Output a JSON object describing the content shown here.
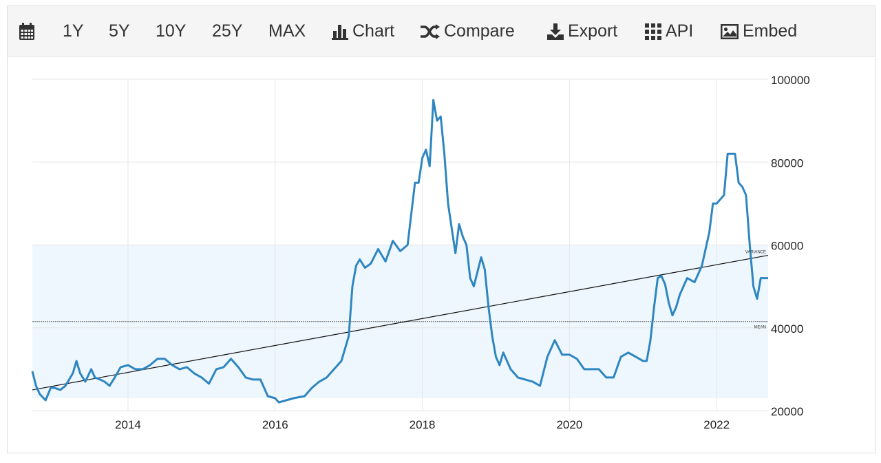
{
  "toolbar": {
    "items": [
      {
        "label": "",
        "icon": "calendar-icon"
      },
      {
        "label": "1Y",
        "icon": ""
      },
      {
        "label": "5Y",
        "icon": ""
      },
      {
        "label": "10Y",
        "icon": ""
      },
      {
        "label": "25Y",
        "icon": ""
      },
      {
        "label": "MAX",
        "icon": ""
      },
      {
        "label": "Chart",
        "icon": "bar-chart-icon"
      },
      {
        "label": "Compare",
        "icon": "shuffle-icon"
      },
      {
        "label": "Export",
        "icon": "download-icon"
      },
      {
        "label": "API",
        "icon": "grid-icon"
      },
      {
        "label": "Embed",
        "icon": "image-icon"
      }
    ]
  },
  "chart_data": {
    "type": "line",
    "title": "",
    "xlabel": "",
    "ylabel": "",
    "xlim": [
      2012.7,
      2022.7
    ],
    "ylim": [
      20000,
      100000
    ],
    "x_ticks": [
      2014,
      2016,
      2018,
      2020,
      2022
    ],
    "x_tick_labels": [
      "2014",
      "2016",
      "2018",
      "2020",
      "2022"
    ],
    "y_ticks": [
      20000,
      40000,
      60000,
      80000,
      100000
    ],
    "y_tick_labels": [
      "20000",
      "40000",
      "60000",
      "80000",
      "100000"
    ],
    "grid": true,
    "colors": {
      "series": "#2e86c1",
      "band": "#eef7fd",
      "trend": "#111111",
      "mean": "#666666",
      "grid": "#e6e6e6"
    },
    "mean": 41500,
    "mean_label": "MEAN",
    "variance_band": [
      23000,
      60000
    ],
    "variance_label": "VARIANCE",
    "trend_line": {
      "x": [
        2012.7,
        2022.7
      ],
      "y": [
        25000,
        57500
      ]
    },
    "series": [
      {
        "x": [
          2012.7,
          2012.75,
          2012.8,
          2012.88,
          2012.95,
          2013.0,
          2013.08,
          2013.15,
          2013.25,
          2013.3,
          2013.35,
          2013.42,
          2013.5,
          2013.55,
          2013.62,
          2013.68,
          2013.75,
          2013.82,
          2013.9,
          2014.0,
          2014.1,
          2014.2,
          2014.3,
          2014.4,
          2014.5,
          2014.6,
          2014.7,
          2014.8,
          2014.9,
          2015.0,
          2015.1,
          2015.2,
          2015.3,
          2015.4,
          2015.5,
          2015.6,
          2015.7,
          2015.8,
          2015.9,
          2016.0,
          2016.05,
          2016.15,
          2016.25,
          2016.4,
          2016.5,
          2016.6,
          2016.7,
          2016.8,
          2016.9,
          2017.0,
          2017.05,
          2017.1,
          2017.15,
          2017.22,
          2017.3,
          2017.4,
          2017.5,
          2017.6,
          2017.7,
          2017.8,
          2017.9,
          2017.95,
          2018.0,
          2018.05,
          2018.1,
          2018.15,
          2018.2,
          2018.25,
          2018.3,
          2018.35,
          2018.4,
          2018.45,
          2018.5,
          2018.55,
          2018.6,
          2018.65,
          2018.7,
          2018.8,
          2018.85,
          2018.9,
          2018.95,
          2019.0,
          2019.05,
          2019.1,
          2019.2,
          2019.3,
          2019.4,
          2019.5,
          2019.6,
          2019.7,
          2019.8,
          2019.9,
          2020.0,
          2020.1,
          2020.2,
          2020.3,
          2020.4,
          2020.5,
          2020.6,
          2020.7,
          2020.8,
          2020.9,
          2021.0,
          2021.05,
          2021.1,
          2021.15,
          2021.2,
          2021.25,
          2021.3,
          2021.35,
          2021.4,
          2021.45,
          2021.5,
          2021.6,
          2021.7,
          2021.8,
          2021.9,
          2021.95,
          2022.0,
          2022.05,
          2022.1,
          2022.15,
          2022.2,
          2022.25,
          2022.3,
          2022.35,
          2022.4,
          2022.45,
          2022.5,
          2022.55,
          2022.6,
          2022.65,
          2022.7
        ],
        "y": [
          29500,
          26000,
          24000,
          22500,
          25500,
          25500,
          25000,
          26000,
          29000,
          32000,
          29000,
          27000,
          30000,
          28000,
          27500,
          27000,
          26000,
          28000,
          30500,
          31000,
          30000,
          30000,
          31000,
          32500,
          32500,
          31000,
          30000,
          30500,
          29000,
          28000,
          26500,
          30000,
          30500,
          32500,
          30500,
          28000,
          27500,
          27500,
          23500,
          23000,
          22000,
          22500,
          23000,
          23500,
          25500,
          27000,
          28000,
          30000,
          32000,
          38000,
          50000,
          55000,
          56500,
          54500,
          55500,
          59000,
          56000,
          61000,
          58500,
          60000,
          75000,
          75000,
          81000,
          83000,
          79000,
          95000,
          90000,
          91000,
          82000,
          70000,
          64000,
          58000,
          65000,
          62000,
          60000,
          52000,
          50000,
          57000,
          54000,
          45000,
          38000,
          33000,
          31000,
          34000,
          30000,
          28000,
          27500,
          27000,
          26000,
          33000,
          37000,
          33500,
          33500,
          32500,
          30000,
          30000,
          30000,
          28000,
          28000,
          33000,
          34000,
          33000,
          32000,
          32000,
          37000,
          45000,
          52000,
          52500,
          50500,
          46000,
          43000,
          45000,
          48000,
          52000,
          51000,
          55000,
          63000,
          70000,
          70000,
          71000,
          72000,
          82000,
          82000,
          82000,
          75000,
          74000,
          72000,
          60000,
          50000,
          47000,
          52000,
          52000,
          52000
        ]
      }
    ]
  }
}
